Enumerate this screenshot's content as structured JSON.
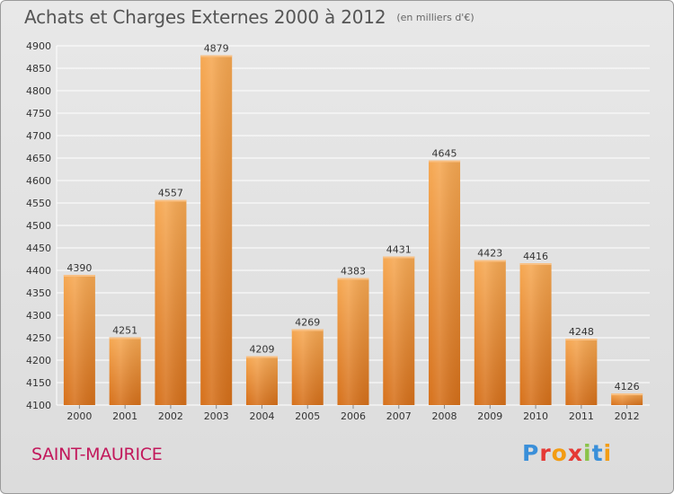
{
  "header": {
    "title": "Achats et Charges Externes 2000 à 2012",
    "unit": "(en milliers d'€)"
  },
  "footer": {
    "location": "SAINT-MAURICE",
    "brand_letters": [
      "P",
      "r",
      "o",
      "x",
      "i",
      "t",
      "i"
    ],
    "brand_colors": [
      "#3a8fd9",
      "#e53935",
      "#f39c12",
      "#e53935",
      "#8bc34a",
      "#3a8fd9",
      "#f39c12"
    ]
  },
  "colors": {
    "bar_top": "#f4a24e",
    "bar_bottom": "#d9741c",
    "grid": "#ffffff",
    "axis_text": "#333333"
  },
  "chart_data": {
    "type": "bar",
    "title": "Achats et Charges Externes 2000 à 2012",
    "subtitle": "(en milliers d'€)",
    "categories": [
      "2000",
      "2001",
      "2002",
      "2003",
      "2004",
      "2005",
      "2006",
      "2007",
      "2008",
      "2009",
      "2010",
      "2011",
      "2012"
    ],
    "values": [
      4390,
      4251,
      4557,
      4879,
      4209,
      4269,
      4383,
      4431,
      4645,
      4423,
      4416,
      4248,
      4126
    ],
    "ylim": [
      4100,
      4900
    ],
    "yticks": [
      4100,
      4150,
      4200,
      4250,
      4300,
      4350,
      4400,
      4450,
      4500,
      4550,
      4600,
      4650,
      4700,
      4750,
      4800,
      4850,
      4900
    ],
    "grid": true,
    "xlabel": "",
    "ylabel": ""
  }
}
